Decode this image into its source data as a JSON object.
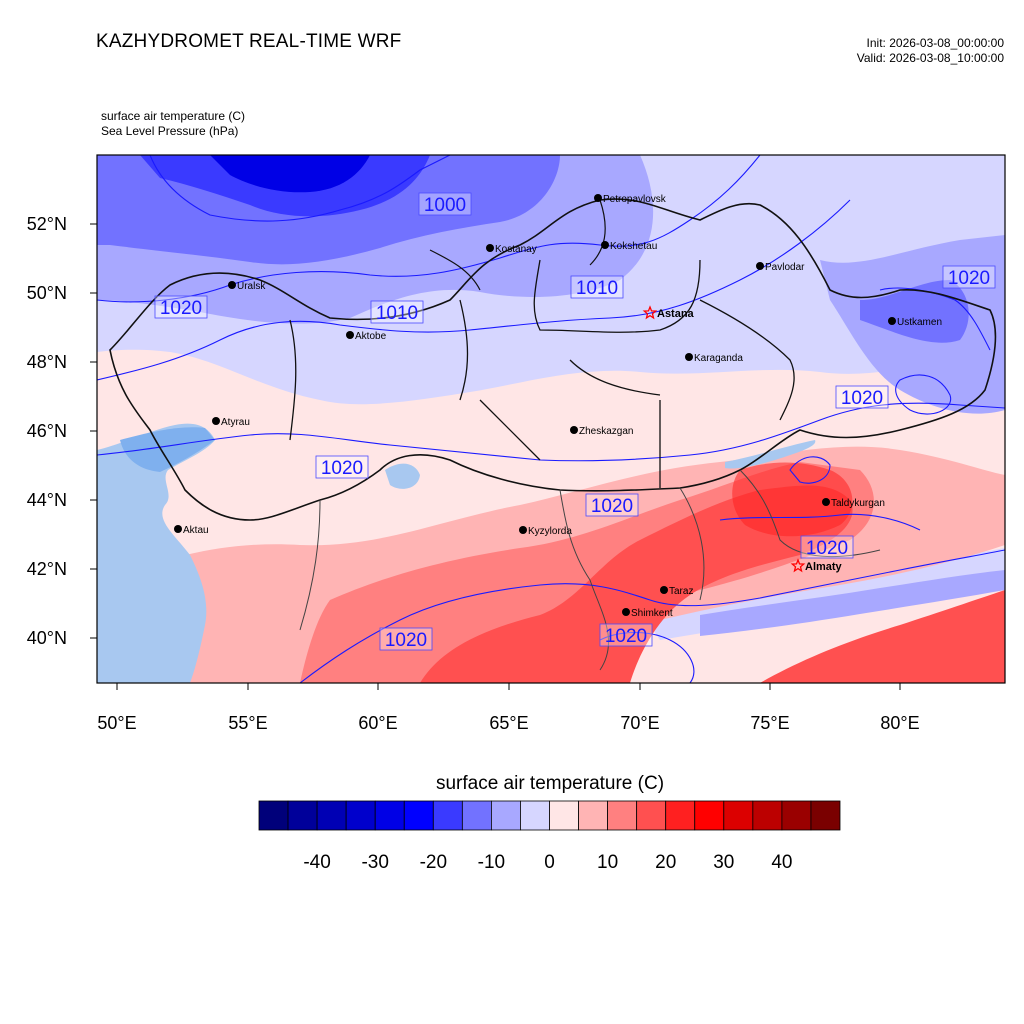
{
  "header": {
    "title": "KAZHYDROMET REAL-TIME WRF",
    "init": "Init: 2026-03-08_00:00:00",
    "valid": "Valid: 2026-03-08_10:00:00",
    "field1": "surface air temperature   (C)",
    "field2": "Sea Level Pressure   (hPa)"
  },
  "map": {
    "lon_ticks": [
      "50°E",
      "55°E",
      "60°E",
      "65°E",
      "70°E",
      "75°E",
      "80°E"
    ],
    "lat_ticks": [
      "52°N",
      "50°N",
      "48°N",
      "46°N",
      "44°N",
      "42°N",
      "40°N"
    ],
    "cities": [
      {
        "name": "Petropavlovsk",
        "capital": false
      },
      {
        "name": "Kostanay",
        "capital": false
      },
      {
        "name": "Kokshetau",
        "capital": false
      },
      {
        "name": "Pavlodar",
        "capital": false
      },
      {
        "name": "Uralsk",
        "capital": false
      },
      {
        "name": "Astana",
        "capital": true
      },
      {
        "name": "Aktobe",
        "capital": false
      },
      {
        "name": "Ustkamen",
        "capital": false
      },
      {
        "name": "Karaganda",
        "capital": false
      },
      {
        "name": "Atyrau",
        "capital": false
      },
      {
        "name": "Zheskazgan",
        "capital": false
      },
      {
        "name": "Taldykurgan",
        "capital": false
      },
      {
        "name": "Aktau",
        "capital": false
      },
      {
        "name": "Kyzylorda",
        "capital": false
      },
      {
        "name": "Almaty",
        "capital": true
      },
      {
        "name": "Taraz",
        "capital": false
      },
      {
        "name": "Shimkent",
        "capital": false
      }
    ],
    "isobar_labels": [
      "1000",
      "1010",
      "1010",
      "1020",
      "1020",
      "1020",
      "1020",
      "1020",
      "1020",
      "1020",
      "1020"
    ]
  },
  "colorbar": {
    "title": "surface air temperature  (C)",
    "tick_labels": [
      "-40",
      "-30",
      "-20",
      "-10",
      "0",
      "10",
      "20",
      "30",
      "40"
    ],
    "colors": [
      "#00007a",
      "#00009a",
      "#0000b4",
      "#0000cc",
      "#0000e6",
      "#0000ff",
      "#3a3aff",
      "#7272ff",
      "#a8a8ff",
      "#d6d6ff",
      "#ffe6e6",
      "#ffb4b4",
      "#ff8080",
      "#ff5050",
      "#ff2020",
      "#ff0000",
      "#dc0000",
      "#bc0000",
      "#9a0000",
      "#7a0000"
    ]
  },
  "colors": {
    "isobar": "#1a1aff",
    "border": "#222222",
    "capital_marker": "#ff0000"
  }
}
